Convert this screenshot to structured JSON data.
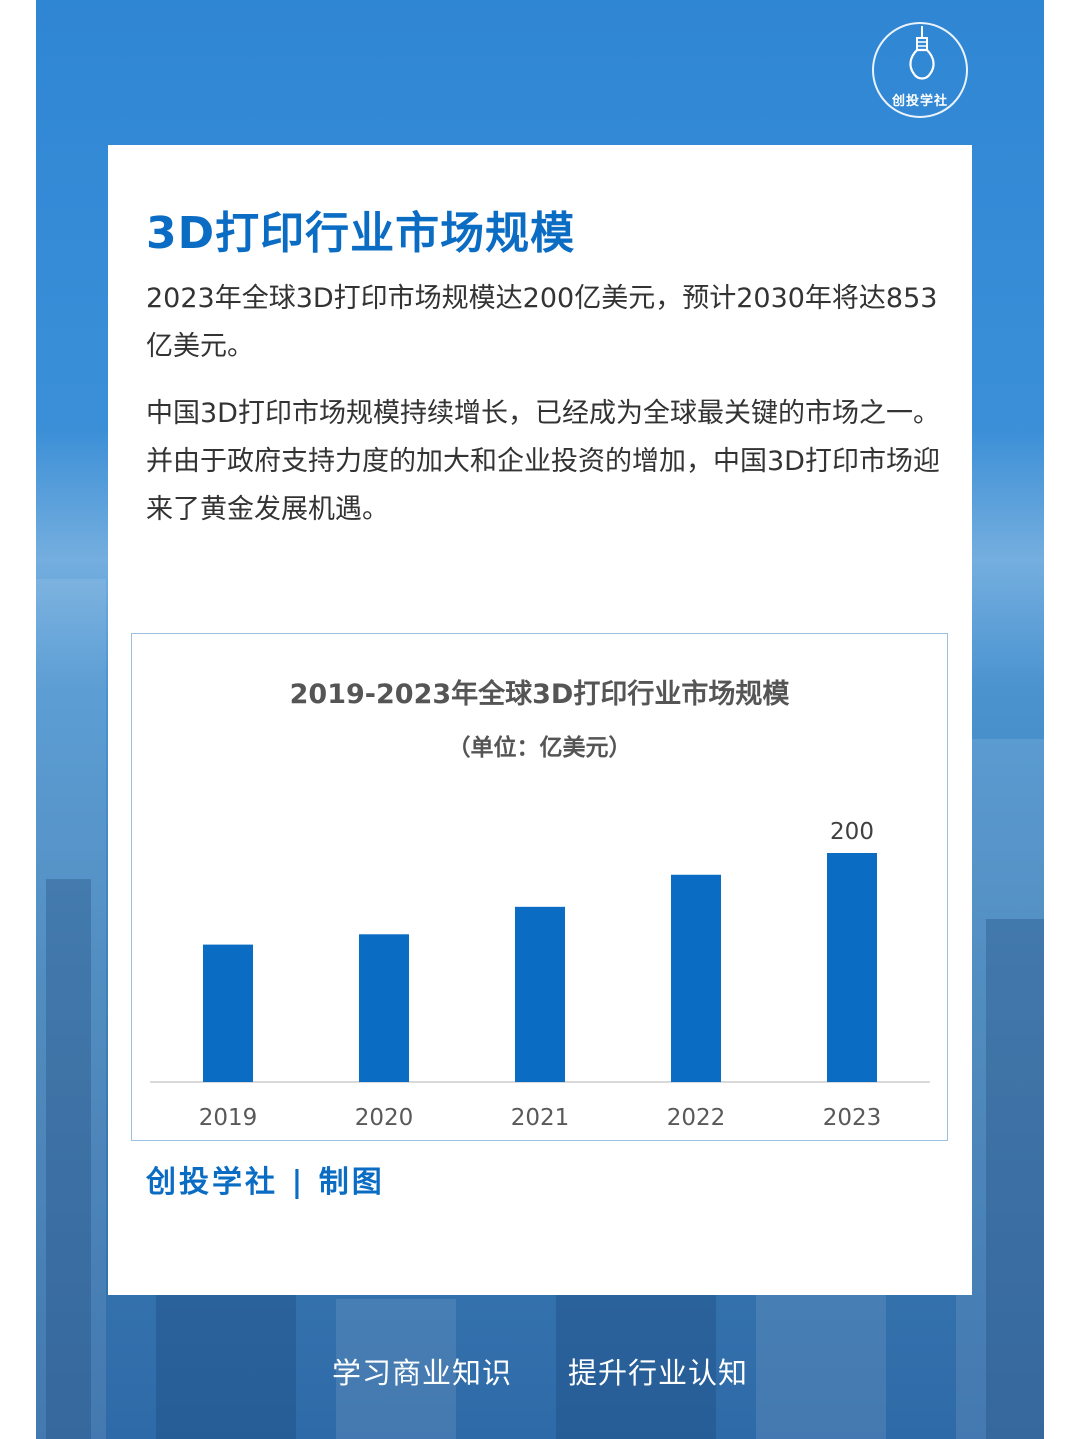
{
  "brand": {
    "logo_text": "创投学社",
    "primary_color": "#0b6cc4",
    "background_color": "#3a8fd8"
  },
  "article": {
    "title": "3D打印行业市场规模",
    "paragraph1": "2023年全球3D打印市场规模达200亿美元，预计2030年将达853亿美元。",
    "paragraph2": "中国3D打印市场规模持续增长，已经成为全球最关键的市场之一。并由于政府支持力度的加大和企业投资的增加，中国3D打印市场迎来了黄金发展机遇。"
  },
  "chart_data": {
    "type": "bar",
    "title": "2019-2023年全球3D打印行业市场规模",
    "subtitle": "（单位：亿美元）",
    "categories": [
      "2019",
      "2020",
      "2021",
      "2022",
      "2023"
    ],
    "values": [
      120,
      129,
      153,
      181,
      200
    ],
    "data_labels": [
      null,
      null,
      null,
      null,
      "200"
    ],
    "ylim": [
      0,
      200
    ],
    "bar_color": "#0b6cc4",
    "grid": false,
    "legend": "none"
  },
  "credit": "创投学社 | 制图",
  "footer": {
    "left": "学习商业知识",
    "right": "提升行业认知"
  }
}
